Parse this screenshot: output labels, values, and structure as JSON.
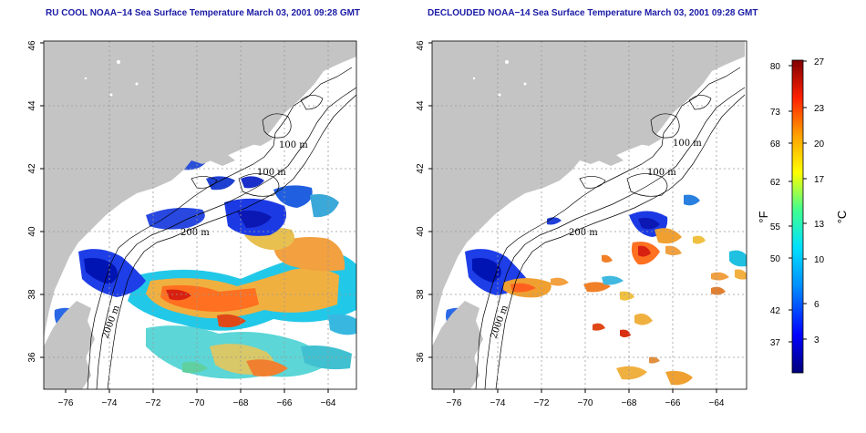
{
  "titles": [
    "RU COOL NOAA−14 Sea Surface Temperature March 03, 2001 09:28 GMT",
    "DECLOUDED NOAA−14 Sea Surface Temperature March 03, 2001 09:28 GMT"
  ],
  "axes": {
    "lon_ticks": [
      "−76",
      "−74",
      "−72",
      "−70",
      "−68",
      "−66",
      "−64"
    ],
    "lat_ticks": [
      "36",
      "38",
      "40",
      "42",
      "44",
      "46"
    ]
  },
  "contour_labels": {
    "c100a": "100 m",
    "c100b": "100 m",
    "c200": "200 m",
    "c2000": "2000 m"
  },
  "colorbar": {
    "f_label": "°F",
    "c_label": "°C",
    "f_ticks": [
      "80",
      "73",
      "68",
      "62",
      "55",
      "50",
      "42",
      "37"
    ],
    "c_ticks": [
      "27",
      "23",
      "20",
      "17",
      "13",
      "10",
      "6",
      "3"
    ]
  },
  "colors": {
    "land": "#c4c4c4",
    "ocean": "#ffffff",
    "title": "#1a1aa6"
  }
}
